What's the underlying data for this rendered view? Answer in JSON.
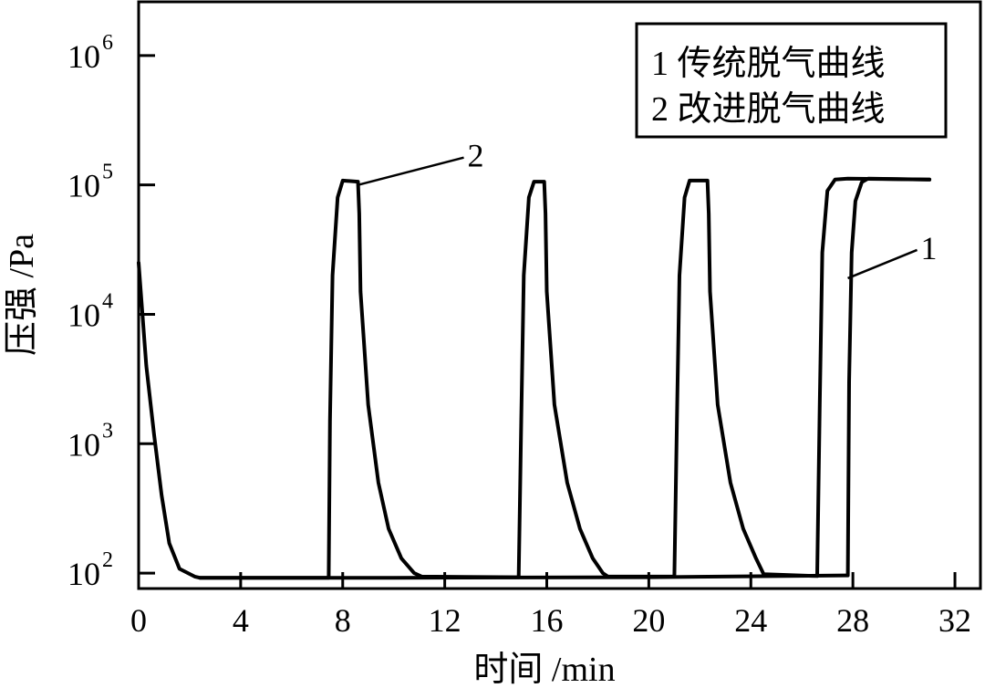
{
  "chart_data": {
    "type": "line",
    "xlabel": "时间 /min",
    "ylabel": "压强 /Pa",
    "xlim": [
      0,
      33
    ],
    "ylim": [
      76,
      2600000
    ],
    "yscale": "log",
    "x_ticks": [
      0,
      4,
      8,
      12,
      16,
      20,
      24,
      28,
      32
    ],
    "y_ticks": [
      {
        "value": 100,
        "base": "10",
        "exp": "2"
      },
      {
        "value": 1000,
        "base": "10",
        "exp": "3"
      },
      {
        "value": 10000,
        "base": "10",
        "exp": "4"
      },
      {
        "value": 100000,
        "base": "10",
        "exp": "5"
      },
      {
        "value": 1000000,
        "base": "10",
        "exp": "6"
      }
    ],
    "legend": {
      "position": "top-right",
      "entries": [
        "1 传统脱气曲线",
        "2 改进脱气曲线"
      ]
    },
    "annotations": [
      {
        "text": "2",
        "series": 1,
        "x": 8.6,
        "y": 100000
      },
      {
        "text": "1",
        "series": 0,
        "x": 27.8,
        "y": 19000
      }
    ],
    "series": [
      {
        "x": [
          0,
          0.3,
          0.6,
          0.9,
          1.2,
          1.6,
          2.2,
          2.4,
          10,
          20,
          27.7,
          27.8,
          27.85,
          27.95,
          28.1,
          28.35,
          28.6,
          31
        ],
        "y": [
          25000,
          4000,
          1200,
          400,
          170,
          108,
          94,
          92,
          92,
          93,
          96,
          96,
          3000,
          30000,
          75000,
          105000,
          112000,
          110000
        ]
      },
      {
        "x": [
          2.4,
          7.45,
          7.5,
          7.6,
          7.8,
          8.0,
          8.6,
          8.65,
          8.7,
          9.0,
          9.4,
          9.8,
          10.3,
          10.8,
          11.1,
          14.9,
          15.0,
          15.1,
          15.3,
          15.5,
          15.9,
          15.95,
          16.0,
          16.3,
          16.8,
          17.3,
          17.8,
          18.2,
          18.4,
          21.0,
          21.1,
          21.2,
          21.4,
          21.6,
          22.3,
          22.35,
          22.4,
          22.7,
          23.2,
          23.7,
          24.2,
          24.5,
          26.6,
          26.7,
          26.8,
          27.0,
          27.3,
          27.8,
          31
        ],
        "y": [
          92,
          92,
          1500,
          20000,
          80000,
          108000,
          106000,
          60000,
          15000,
          2000,
          500,
          220,
          130,
          100,
          94,
          93,
          1500,
          20000,
          80000,
          106000,
          106000,
          60000,
          15000,
          2000,
          500,
          220,
          130,
          100,
          94,
          94,
          1500,
          20000,
          80000,
          108000,
          108000,
          60000,
          15000,
          2000,
          500,
          220,
          130,
          98,
          95,
          2000,
          30000,
          90000,
          110000,
          112000,
          110000
        ]
      }
    ]
  }
}
